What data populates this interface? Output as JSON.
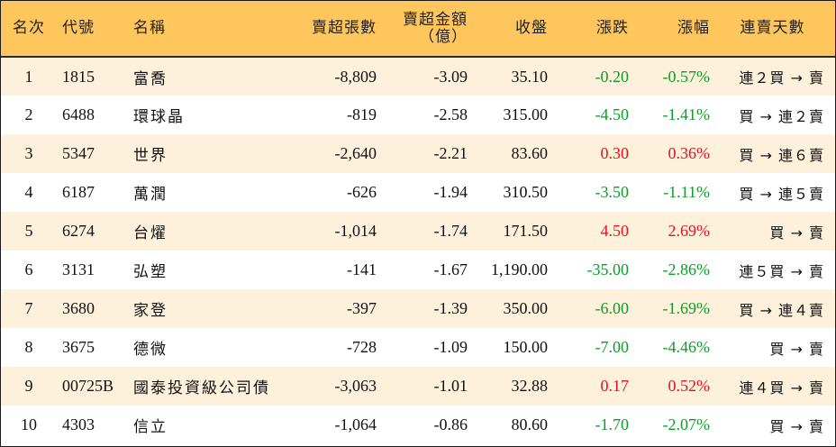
{
  "table": {
    "headers": {
      "rank": "名次",
      "code": "代號",
      "name": "名稱",
      "net_sell_lots": "賣超張數",
      "net_sell_amount_line1": "賣超金額",
      "net_sell_amount_line2": "（億）",
      "close": "收盤",
      "change": "漲跌",
      "change_pct": "漲幅",
      "consecutive_days": "連賣天數"
    },
    "rows": [
      {
        "rank": "1",
        "code": "1815",
        "name": "富喬",
        "lots": "-8,809",
        "amount": "-3.09",
        "close": "35.10",
        "change": "-0.20",
        "pct": "-0.57%",
        "trend": "down",
        "days": "連２買 → 賣"
      },
      {
        "rank": "2",
        "code": "6488",
        "name": "環球晶",
        "lots": "-819",
        "amount": "-2.58",
        "close": "315.00",
        "change": "-4.50",
        "pct": "-1.41%",
        "trend": "down",
        "days": "買 → 連２賣"
      },
      {
        "rank": "3",
        "code": "5347",
        "name": "世界",
        "lots": "-2,640",
        "amount": "-2.21",
        "close": "83.60",
        "change": "0.30",
        "pct": "0.36%",
        "trend": "up",
        "days": "買 → 連６賣"
      },
      {
        "rank": "4",
        "code": "6187",
        "name": "萬潤",
        "lots": "-626",
        "amount": "-1.94",
        "close": "310.50",
        "change": "-3.50",
        "pct": "-1.11%",
        "trend": "down",
        "days": "買 → 連５賣"
      },
      {
        "rank": "5",
        "code": "6274",
        "name": "台燿",
        "lots": "-1,014",
        "amount": "-1.74",
        "close": "171.50",
        "change": "4.50",
        "pct": "2.69%",
        "trend": "up",
        "days": "買 → 賣"
      },
      {
        "rank": "6",
        "code": "3131",
        "name": "弘塑",
        "lots": "-141",
        "amount": "-1.67",
        "close": "1,190.00",
        "change": "-35.00",
        "pct": "-2.86%",
        "trend": "down",
        "days": "連５買 → 賣"
      },
      {
        "rank": "7",
        "code": "3680",
        "name": "家登",
        "lots": "-397",
        "amount": "-1.39",
        "close": "350.00",
        "change": "-6.00",
        "pct": "-1.69%",
        "trend": "down",
        "days": "買 → 連４賣"
      },
      {
        "rank": "8",
        "code": "3675",
        "name": "德微",
        "lots": "-728",
        "amount": "-1.09",
        "close": "150.00",
        "change": "-7.00",
        "pct": "-4.46%",
        "trend": "down",
        "days": "買 → 賣"
      },
      {
        "rank": "9",
        "code": "00725B",
        "name": "國泰投資級公司債",
        "lots": "-3,063",
        "amount": "-1.01",
        "close": "32.88",
        "change": "0.17",
        "pct": "0.52%",
        "trend": "up",
        "days": "連４買 → 賣"
      },
      {
        "rank": "10",
        "code": "4303",
        "name": "信立",
        "lots": "-1,064",
        "amount": "-0.86",
        "close": "80.60",
        "change": "-1.70",
        "pct": "-2.07%",
        "trend": "down",
        "days": "買 → 賣"
      }
    ]
  },
  "colors": {
    "header_bg": "#ffc65e",
    "stripe_bg": "#fdf1dc",
    "up": "#e0121e",
    "down": "#0f9a2a"
  }
}
